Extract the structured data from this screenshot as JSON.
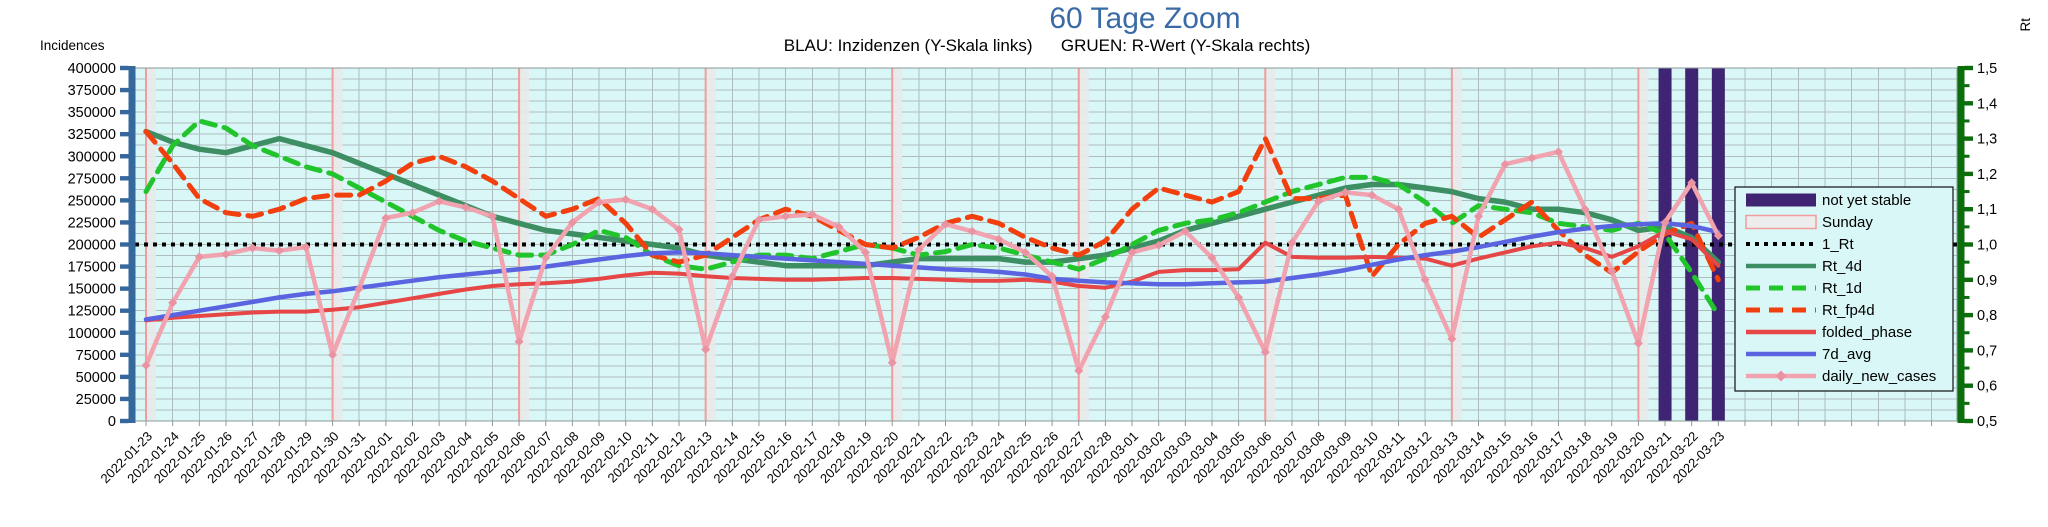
{
  "chart_data": {
    "type": "line",
    "title": "60 Tage Zoom",
    "subtitle": "BLAU: Inzidenzen (Y-Skala links)      GRUEN: R-Wert (Y-Skala rechts)",
    "axes": {
      "left_label": "Incidences",
      "right_label": "Rt",
      "left_range": [
        0,
        400000
      ],
      "left_tick_step": 25000,
      "left_ticks": [
        "400000",
        "375000",
        "350000",
        "325000",
        "300000",
        "275000",
        "250000",
        "225000",
        "200000",
        "175000",
        "150000",
        "125000",
        "100000",
        "75000",
        "50000",
        "25000",
        "0"
      ],
      "right_range": [
        0.5,
        1.5
      ],
      "right_tick_step": 0.1,
      "right_ticks": [
        "1,5",
        "1,4",
        "1,3",
        "1,2",
        "1,1",
        "1,0",
        "0,9",
        "0,8",
        "0,7",
        "0,6",
        "0,5"
      ],
      "grid": "on",
      "minor_h_grid_step_left": 12500
    },
    "x_dates": [
      "2022-01-23",
      "2022-01-24",
      "2022-01-25",
      "2022-01-26",
      "2022-01-27",
      "2022-01-28",
      "2022-01-29",
      "2022-01-30",
      "2022-01-31",
      "2022-02-01",
      "2022-02-02",
      "2022-02-03",
      "2022-02-04",
      "2022-02-05",
      "2022-02-06",
      "2022-02-07",
      "2022-02-08",
      "2022-02-09",
      "2022-02-10",
      "2022-02-11",
      "2022-02-12",
      "2022-02-13",
      "2022-02-14",
      "2022-02-15",
      "2022-02-16",
      "2022-02-17",
      "2022-02-18",
      "2022-02-19",
      "2022-02-20",
      "2022-02-21",
      "2022-02-22",
      "2022-02-23",
      "2022-02-24",
      "2022-02-25",
      "2022-02-26",
      "2022-02-27",
      "2022-02-28",
      "2022-03-01",
      "2022-03-02",
      "2022-03-03",
      "2022-03-04",
      "2022-03-05",
      "2022-03-06",
      "2022-03-07",
      "2022-03-08",
      "2022-03-09",
      "2022-03-10",
      "2022-03-11",
      "2022-03-12",
      "2022-03-13",
      "2022-03-14",
      "2022-03-15",
      "2022-03-16",
      "2022-03-17",
      "2022-03-18",
      "2022-03-19",
      "2022-03-20",
      "2022-03-21",
      "2022-03-22",
      "2022-03-23"
    ],
    "bands": {
      "sunday_dates": [
        "2022-01-23",
        "2022-01-30",
        "2022-02-06",
        "2022-02-13",
        "2022-02-20",
        "2022-02-27",
        "2022-03-06",
        "2022-03-13",
        "2022-03-20"
      ],
      "not_yet_stable_dates": [
        "2022-03-21",
        "2022-03-22",
        "2022-03-23"
      ]
    },
    "series": [
      {
        "name": "1_Rt",
        "axis": "right",
        "style": "dotted",
        "color": "#000000",
        "w": 4,
        "constant": 1.0
      },
      {
        "name": "Rt_4d",
        "axis": "right",
        "style": "solid",
        "color": "#3d8e63",
        "w": 5.5,
        "values": [
          1.32,
          1.29,
          1.27,
          1.26,
          1.28,
          1.3,
          1.28,
          1.26,
          1.23,
          1.2,
          1.17,
          1.14,
          1.11,
          1.08,
          1.06,
          1.04,
          1.03,
          1.02,
          1.01,
          1.0,
          0.99,
          0.97,
          0.96,
          0.95,
          0.94,
          0.94,
          0.94,
          0.94,
          0.95,
          0.96,
          0.96,
          0.96,
          0.96,
          0.95,
          0.95,
          0.96,
          0.97,
          0.99,
          1.01,
          1.04,
          1.06,
          1.08,
          1.1,
          1.12,
          1.14,
          1.16,
          1.17,
          1.17,
          1.16,
          1.15,
          1.13,
          1.12,
          1.1,
          1.1,
          1.09,
          1.07,
          1.04,
          1.05,
          1.02,
          0.95
        ]
      },
      {
        "name": "Rt_1d",
        "axis": "right",
        "style": "dashed",
        "color": "#22c42c",
        "w": 5,
        "values": [
          1.15,
          1.28,
          1.35,
          1.33,
          1.28,
          1.25,
          1.22,
          1.2,
          1.16,
          1.12,
          1.08,
          1.04,
          1.01,
          0.99,
          0.97,
          0.97,
          1.0,
          1.04,
          1.02,
          0.97,
          0.94,
          0.93,
          0.95,
          0.97,
          0.97,
          0.96,
          0.98,
          1.0,
          0.99,
          0.97,
          0.98,
          1.0,
          0.99,
          0.97,
          0.95,
          0.93,
          0.96,
          1.0,
          1.04,
          1.06,
          1.07,
          1.09,
          1.12,
          1.15,
          1.17,
          1.19,
          1.19,
          1.17,
          1.12,
          1.06,
          1.11,
          1.1,
          1.09,
          1.06,
          1.05,
          1.04,
          1.06,
          1.03,
          0.92,
          0.8
        ]
      },
      {
        "name": "Rt_fp4d",
        "axis": "right",
        "style": "dashed",
        "color": "#f23f0e",
        "w": 5,
        "values": [
          1.32,
          1.23,
          1.13,
          1.09,
          1.08,
          1.1,
          1.13,
          1.14,
          1.14,
          1.18,
          1.23,
          1.25,
          1.22,
          1.18,
          1.13,
          1.08,
          1.1,
          1.13,
          1.06,
          0.97,
          0.95,
          0.97,
          1.02,
          1.07,
          1.1,
          1.08,
          1.04,
          1.0,
          0.99,
          1.02,
          1.06,
          1.08,
          1.06,
          1.02,
          0.99,
          0.97,
          1.01,
          1.1,
          1.16,
          1.14,
          1.12,
          1.15,
          1.3,
          1.13,
          1.13,
          1.14,
          0.91,
          1.0,
          1.06,
          1.08,
          1.02,
          1.07,
          1.12,
          1.04,
          0.97,
          0.92,
          0.98,
          1.03,
          1.06,
          0.9
        ]
      },
      {
        "name": "folded_phase",
        "axis": "left",
        "style": "solid",
        "color": "#e64646",
        "w": 4,
        "values": [
          114000,
          117000,
          119000,
          121000,
          123000,
          124000,
          124000,
          126000,
          129000,
          134000,
          139000,
          144000,
          149000,
          153000,
          155000,
          156000,
          158000,
          161000,
          165000,
          168000,
          167000,
          164000,
          162000,
          161000,
          160000,
          160000,
          161000,
          162000,
          162000,
          161000,
          160000,
          159000,
          159000,
          160000,
          158000,
          153000,
          151000,
          158000,
          169000,
          171000,
          171000,
          172000,
          202000,
          186000,
          185000,
          185000,
          186000,
          185000,
          184000,
          176000,
          184000,
          191000,
          198000,
          202000,
          196000,
          186000,
          198000,
          215000,
          206000,
          176000
        ]
      },
      {
        "name": "7d_avg",
        "axis": "left",
        "style": "solid",
        "color": "#5a64e0",
        "w": 4.5,
        "values": [
          115000,
          120000,
          125000,
          130000,
          135000,
          140000,
          144000,
          147000,
          151000,
          155000,
          159000,
          163000,
          166000,
          169000,
          172000,
          175000,
          179000,
          183000,
          187000,
          190000,
          191000,
          190000,
          188000,
          186000,
          184000,
          182000,
          180000,
          178000,
          176000,
          174000,
          172000,
          171000,
          169000,
          166000,
          161000,
          159000,
          157000,
          156000,
          155000,
          155000,
          156000,
          157000,
          158000,
          162000,
          166000,
          171000,
          177000,
          183000,
          188000,
          192000,
          197000,
          203000,
          209000,
          214000,
          218000,
          221000,
          223000,
          224000,
          221000,
          214000
        ]
      },
      {
        "name": "daily_new_cases",
        "axis": "left",
        "style": "solid",
        "color": "#f1a3af",
        "w": 4.5,
        "marker": "diamond",
        "values": [
          63000,
          134000,
          186000,
          189000,
          196000,
          193000,
          197000,
          75000,
          150000,
          230000,
          236000,
          249000,
          242000,
          232000,
          90000,
          185000,
          225000,
          248000,
          251000,
          240000,
          217000,
          81000,
          164000,
          228000,
          232000,
          234000,
          220000,
          191000,
          66000,
          194000,
          223000,
          215000,
          206000,
          191000,
          164000,
          57000,
          118000,
          191000,
          199000,
          215000,
          185000,
          140000,
          78000,
          202000,
          249000,
          259000,
          256000,
          240000,
          160000,
          93000,
          232000,
          291000,
          298000,
          305000,
          240000,
          170000,
          88000,
          225000,
          270000,
          210000
        ]
      }
    ],
    "legend": [
      {
        "label": "not yet stable",
        "swatch": "band",
        "color": "#3e2472"
      },
      {
        "label": "Sunday",
        "swatch": "sunday-band",
        "color": "#ededed"
      },
      {
        "label": "1_Rt",
        "swatch": "dotted",
        "color": "#000000"
      },
      {
        "label": "Rt_4d",
        "swatch": "solid",
        "color": "#3d8e63"
      },
      {
        "label": "Rt_1d",
        "swatch": "dashed",
        "color": "#22c42c"
      },
      {
        "label": "Rt_fp4d",
        "swatch": "dashed",
        "color": "#f23f0e"
      },
      {
        "label": "folded_phase",
        "swatch": "solid",
        "color": "#e64646"
      },
      {
        "label": "7d_avg",
        "swatch": "solid",
        "color": "#5a64e0"
      },
      {
        "label": "daily_new_cases",
        "swatch": "diamond-line",
        "color": "#f1a3af"
      }
    ],
    "colors": {
      "title": "#3a6ba5",
      "plot_bg": "#d9f7f7",
      "grid": "#aebcbc",
      "frame": "#8a9a9a",
      "left_axis": "#35689d",
      "right_axis": "#0b6d0b",
      "sunday_line": "#f29c9c",
      "sunday_band": "#e9e9e9",
      "not_yet_stable_band": "#3e2472",
      "daily_marker": "#ea93a3"
    },
    "legend_position": "right-inside"
  }
}
